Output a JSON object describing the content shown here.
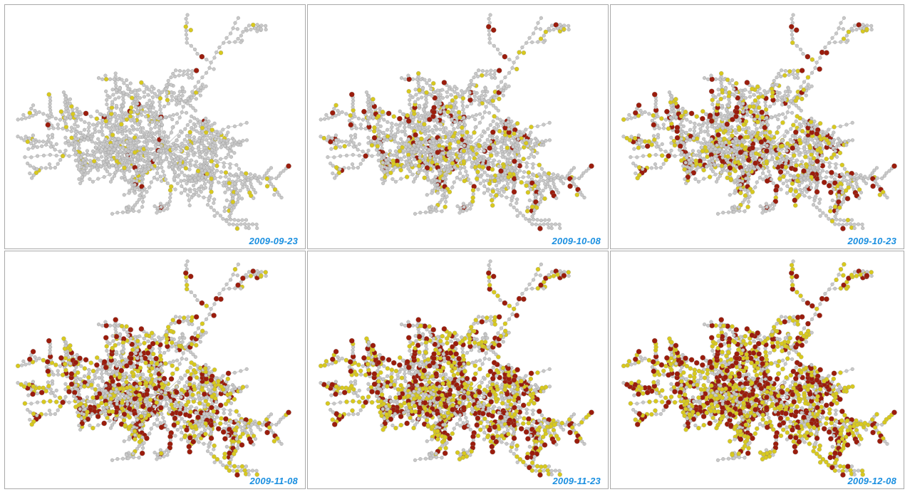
{
  "panels": [
    {
      "date": "2009-09-23",
      "step": 0
    },
    {
      "date": "2009-10-08",
      "step": 1
    },
    {
      "date": "2009-10-23",
      "step": 2
    },
    {
      "date": "2009-11-08",
      "step": 3
    },
    {
      "date": "2009-11-23",
      "step": 4
    },
    {
      "date": "2009-12-08",
      "step": 5
    }
  ],
  "colors": {
    "node_default": "#c8c8c8",
    "node_highlight": "#d8c91e",
    "node_active": "#9b1c0c",
    "edge": "#bdbdbd",
    "date_label": "#1a8fe0",
    "border": "#a9a9a9"
  }
}
